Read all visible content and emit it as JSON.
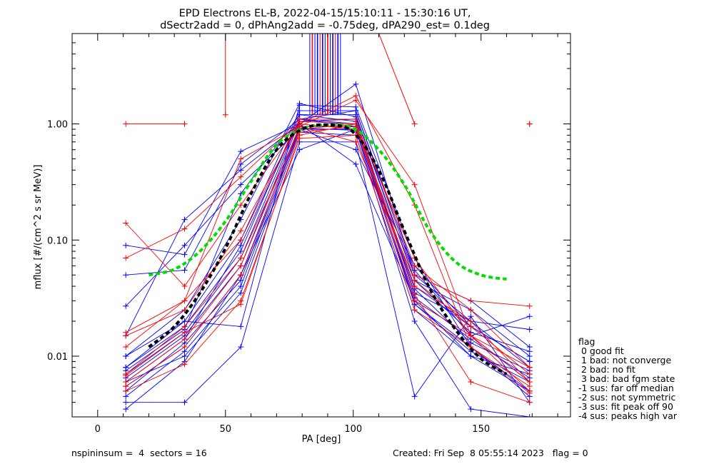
{
  "chart_data": {
    "type": "line",
    "title": "EPD Electrons EL-B, 2022-04-15/15:10:11 - 15:30:16 UT,",
    "subtitle": "dSectr2add = 0, dPhAng2add = -0.75deg, dPA290_est=   0.1deg",
    "xlabel": "PA [deg]",
    "ylabel": "mflux [#/(cm^2 s sr MeV)]",
    "xlim": [
      -10,
      185
    ],
    "ylim": [
      0.003,
      6
    ],
    "yscale": "log",
    "grid": false,
    "x_ticks": [
      "0",
      "50",
      "100",
      "150"
    ],
    "x_tick_values": [
      0,
      50,
      100,
      150
    ],
    "y_ticks": [
      "0.01",
      "0.10",
      "1.00"
    ],
    "y_tick_values": [
      0.01,
      0.1,
      1.0
    ],
    "bin_centers": [
      11,
      34,
      56,
      79,
      101,
      124,
      146,
      169
    ],
    "series": [
      {
        "color": "#0000ff",
        "values": [
          0.0065,
          0.015,
          0.06,
          1.05,
          1.1,
          0.035,
          0.02,
          0.008
        ]
      },
      {
        "color": "#0000ff",
        "values": [
          0.0055,
          0.012,
          0.05,
          0.95,
          0.95,
          0.03,
          0.015,
          0.006
        ]
      },
      {
        "color": "#0000ff",
        "values": [
          0.0045,
          0.011,
          0.04,
          0.9,
          0.9,
          0.028,
          0.012,
          0.005
        ]
      },
      {
        "color": "#0000ff",
        "values": [
          0.008,
          0.018,
          0.08,
          1.2,
          1.2,
          0.045,
          0.025,
          0.01
        ]
      },
      {
        "color": "#0000ff",
        "values": [
          0.007,
          0.016,
          0.07,
          1.1,
          1.0,
          0.04,
          0.018,
          0.009
        ]
      },
      {
        "color": "#0000ff",
        "values": [
          0.01,
          0.02,
          0.1,
          1.3,
          1.3,
          0.05,
          0.03,
          0.012
        ]
      },
      {
        "color": "#0000ff",
        "values": [
          0.006,
          0.01,
          0.035,
          0.85,
          0.8,
          0.025,
          0.01,
          0.007
        ]
      },
      {
        "color": "#0000ff",
        "values": [
          0.005,
          0.013,
          0.045,
          0.92,
          0.88,
          0.032,
          0.014,
          0.0065
        ]
      },
      {
        "color": "#0000ff",
        "values": [
          0.004,
          0.004,
          0.012,
          0.7,
          0.7,
          0.0045,
          0.022,
          0.004
        ]
      },
      {
        "color": "#0000ff",
        "values": [
          0.09,
          0.075,
          0.58,
          1.0,
          2.2,
          0.05,
          0.02,
          0.017
        ]
      },
      {
        "color": "#0000ff",
        "values": [
          0.05,
          0.055,
          0.45,
          1.1,
          1.3,
          0.055,
          0.015,
          0.022
        ]
      },
      {
        "color": "#0000ff",
        "values": [
          0.027,
          0.09,
          0.3,
          0.9,
          0.6,
          0.06,
          0.018,
          0.009
        ]
      },
      {
        "color": "#0000ff",
        "values": [
          0.015,
          0.15,
          0.4,
          1.0,
          0.45,
          0.03,
          0.01,
          0.005
        ]
      },
      {
        "color": "#0000ff",
        "values": [
          0.008,
          0.02,
          0.018,
          1.45,
          1.4,
          0.07,
          0.012,
          0.0045
        ]
      },
      {
        "color": "#0000ff",
        "values": [
          0.0035,
          0.009,
          0.05,
          0.6,
          0.9,
          0.02,
          0.0035,
          0.003
        ]
      },
      {
        "color": "#0000ff",
        "values": [
          0.01,
          0.025,
          0.15,
          1.5,
          1.15,
          0.045,
          0.016,
          0.011
        ]
      },
      {
        "color": "#0000ff",
        "values": [
          0.006,
          0.014,
          0.09,
          1.1,
          0.95,
          0.038,
          0.013,
          0.0075
        ]
      },
      {
        "color": "#0000ff",
        "values": [
          0.0075,
          0.017,
          0.25,
          1.2,
          1.05,
          0.028,
          0.011,
          0.006
        ]
      },
      {
        "color": "#ff0000",
        "values": [
          0.007,
          0.018,
          0.07,
          0.9,
          1.0,
          0.04,
          0.02,
          0.006
        ]
      },
      {
        "color": "#ff0000",
        "values": [
          0.0055,
          0.012,
          0.05,
          0.85,
          0.95,
          0.03,
          0.015,
          0.005
        ]
      },
      {
        "color": "#ff0000",
        "values": [
          0.005,
          0.0085,
          0.03,
          0.75,
          0.8,
          0.025,
          0.012,
          0.0048
        ]
      },
      {
        "color": "#ff0000",
        "values": [
          0.016,
          0.03,
          0.1,
          1.1,
          1.1,
          0.06,
          0.025,
          0.008
        ]
      },
      {
        "color": "#ff0000",
        "values": [
          0.14,
          0.04,
          0.2,
          1.0,
          0.9,
          0.05,
          0.03,
          0.027
        ]
      },
      {
        "color": "#ff0000",
        "values": [
          0.07,
          0.125,
          0.35,
          1.05,
          1.0,
          0.07,
          0.015,
          0.008
        ]
      },
      {
        "color": "#ff0000",
        "values": [
          0.012,
          0.03,
          0.5,
          0.95,
          1.6,
          0.3,
          0.015,
          0.006
        ]
      },
      {
        "color": "#ff0000",
        "values": [
          0.0068,
          0.016,
          0.028,
          0.8,
          1.0,
          0.034,
          0.006,
          0.004
        ]
      },
      {
        "color": "#ff0000",
        "values": [
          0.006,
          0.014,
          0.06,
          0.95,
          0.7,
          0.045,
          0.018,
          0.007
        ]
      },
      {
        "color": "#ff0000",
        "values": [
          0.015,
          0.025,
          0.12,
          1.0,
          1.75,
          0.2,
          0.012,
          0.0055
        ]
      }
    ],
    "red_offscale": [
      {
        "x": [
          11,
          34
        ],
        "y": [
          1.0,
          1.0
        ]
      },
      {
        "x": [
          50,
          50
        ],
        "y": [
          1.2,
          6.0
        ]
      },
      {
        "x": [
          110,
          124
        ],
        "y": [
          6.0,
          1.0
        ]
      },
      {
        "x": [
          169,
          169
        ],
        "y": [
          1.0,
          1.0
        ]
      }
    ],
    "green_fit": {
      "color": "#00dd00",
      "x": [
        20,
        30,
        40,
        50,
        60,
        70,
        80,
        90,
        100,
        110,
        120,
        130,
        140,
        150,
        160
      ],
      "y": [
        0.05,
        0.056,
        0.08,
        0.145,
        0.32,
        0.66,
        0.91,
        0.98,
        0.92,
        0.6,
        0.3,
        0.12,
        0.065,
        0.05,
        0.046
      ]
    },
    "black_fit": {
      "color": "#000000",
      "x": [
        20,
        30,
        40,
        50,
        60,
        70,
        80,
        90,
        100,
        110,
        120,
        130,
        140,
        150,
        160
      ],
      "y": [
        0.012,
        0.018,
        0.035,
        0.085,
        0.25,
        0.6,
        0.9,
        0.98,
        0.85,
        0.4,
        0.12,
        0.038,
        0.017,
        0.0095,
        0.007
      ]
    },
    "legend": {
      "placement": "right",
      "title": "flag",
      "entries": [
        " 0 good fit",
        " 1 bad: not converge",
        " 2 bad: no fit",
        " 3 bad: bad fgm state",
        "-1 sus: far off median",
        "-2 sus: not symmetric",
        "-3 sus: fit peak off 90",
        "-4 sus: peaks high var"
      ]
    },
    "footer_left": "nspininsum =  4  sectors = 16",
    "footer_right": "Created: Fri Sep  8 05:55:14 2023   flag = 0"
  }
}
